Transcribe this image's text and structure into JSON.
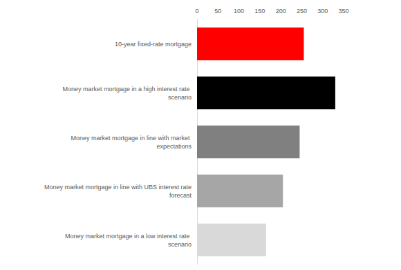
{
  "chart_data": {
    "type": "bar",
    "orientation": "horizontal",
    "categories": [
      "10-year fixed-rate mortgage",
      "Money market mortgage in a high interest rate scenario",
      "Money market mortgage in line with market expectations",
      "Money market mortgage in line with UBS interest rate forecast",
      "Money market mortgage in a low interest rate scenario"
    ],
    "values": [
      255,
      330,
      245,
      205,
      165
    ],
    "colors": [
      "#ff0000",
      "#000000",
      "#808080",
      "#a6a6a6",
      "#d9d9d9"
    ],
    "xlim": [
      0,
      350
    ],
    "xticks": [
      0,
      50,
      100,
      150,
      200,
      250,
      300,
      350
    ],
    "grid": false
  }
}
